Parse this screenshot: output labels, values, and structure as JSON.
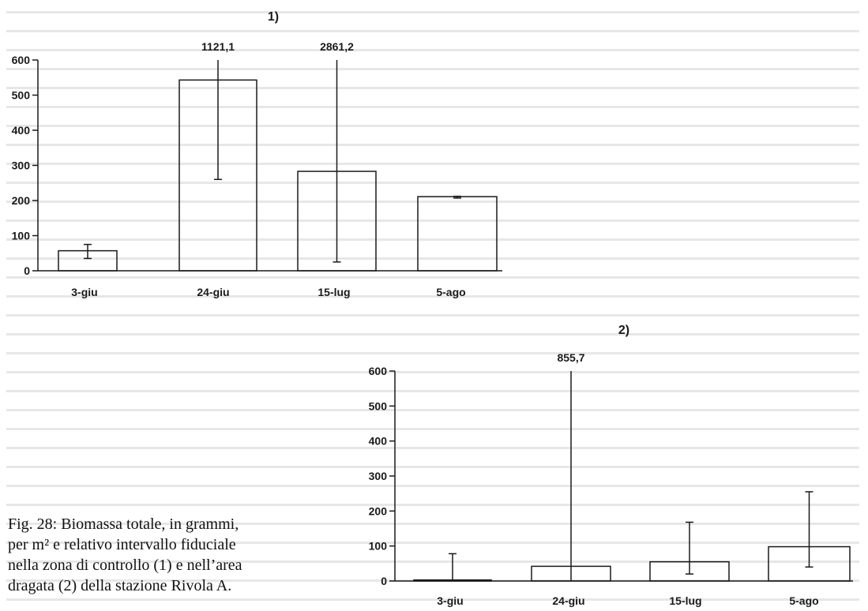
{
  "background_text_color": "#d4d4d4",
  "chart_data": [
    {
      "type": "bar",
      "panel_label": "1)",
      "categories": [
        "3-giu",
        "24-giu",
        "15-lug",
        "5-ago"
      ],
      "values": [
        57,
        543,
        283,
        211
      ],
      "error_low": [
        35,
        260,
        25,
        207
      ],
      "error_high": [
        75,
        1121.1,
        2861.2,
        212
      ],
      "error_labels": [
        "",
        "1121,1",
        "2861,2",
        ""
      ],
      "ylim": [
        0,
        600
      ],
      "yticks": [
        "0",
        "100",
        "200",
        "300",
        "400",
        "500",
        "600"
      ],
      "grid": false
    },
    {
      "type": "bar",
      "panel_label": "2)",
      "categories": [
        "3-giu",
        "24-giu",
        "15-lug",
        "5-ago"
      ],
      "values": [
        3,
        42,
        55,
        98
      ],
      "error_low": [
        0,
        0,
        20,
        40
      ],
      "error_high": [
        78,
        855.7,
        168,
        255
      ],
      "error_labels": [
        "",
        "855,7",
        "",
        ""
      ],
      "ylim": [
        0,
        600
      ],
      "yticks": [
        "0",
        "100",
        "200",
        "300",
        "400",
        "500",
        "600"
      ],
      "grid": false
    }
  ],
  "caption_lines": [
    "Fig. 28: Biomassa totale, in grammi,",
    "per m² e relativo intervallo fiduciale",
    "nella zona di controllo (1) e nell’area",
    "dragata (2) della stazione Rivola A."
  ]
}
